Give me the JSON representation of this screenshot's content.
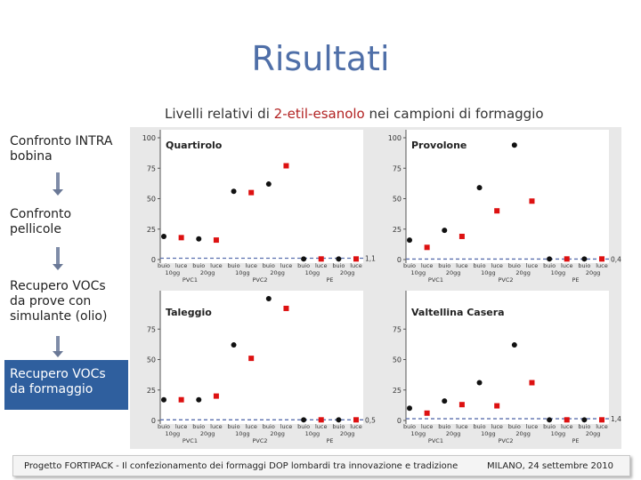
{
  "title": "Risultati",
  "subtitle": {
    "pre": "Livelli relativi di ",
    "compound": "2-etil-esanolo",
    "post": " nei campioni di formaggio"
  },
  "sidebar": {
    "items": [
      {
        "label": "Confronto INTRA bobina",
        "active": false
      },
      {
        "label": "Confronto pellicole",
        "active": false
      },
      {
        "label": "Recupero VOCs da prove con simulante (olio)",
        "active": false
      },
      {
        "label": "Recupero VOCs da formaggio",
        "active": true
      }
    ]
  },
  "footer": {
    "left": "Progetto FORTIPACK - Il confezionamento dei formaggi DOP lombardi tra innovazione e tradizione",
    "right": "MILANO, 24 settembre 2010"
  },
  "colors": {
    "series_circle": "#111111",
    "series_square": "#dd1111",
    "ref_line": "#5a6fae",
    "accent": "#2f5f9e"
  },
  "chart_data": [
    {
      "type": "scatter",
      "title": "Quartirolo",
      "categories": [
        "buio",
        "luce",
        "buio",
        "luce",
        "buio",
        "luce",
        "buio",
        "luce",
        "buio",
        "luce",
        "buio",
        "luce"
      ],
      "day_groups": [
        "10gg",
        "20gg",
        "10gg",
        "20gg",
        "10gg",
        "20gg"
      ],
      "film_groups": [
        "PVC1",
        "PVC2",
        "PE"
      ],
      "yticks": [
        0,
        25,
        50,
        75,
        100
      ],
      "ylim": [
        0,
        100
      ],
      "reference": {
        "value": 1.1,
        "label": "1,1"
      },
      "series": [
        {
          "marker": "circle",
          "values": [
            19,
            null,
            17,
            null,
            56,
            null,
            62,
            null,
            0.5,
            null,
            0.5,
            null
          ]
        },
        {
          "marker": "square",
          "values": [
            null,
            18,
            null,
            16,
            null,
            55,
            null,
            77,
            null,
            0.5,
            null,
            0.5
          ]
        }
      ]
    },
    {
      "type": "scatter",
      "title": "Provolone",
      "categories": [
        "buio",
        "luce",
        "buio",
        "luce",
        "buio",
        "luce",
        "buio",
        "luce",
        "buio",
        "luce",
        "buio",
        "luce"
      ],
      "day_groups": [
        "10gg",
        "20gg",
        "10gg",
        "20gg",
        "10gg",
        "20gg"
      ],
      "film_groups": [
        "PVC1",
        "PVC2",
        "PE"
      ],
      "yticks": [
        0,
        25,
        50,
        75,
        100
      ],
      "ylim": [
        0,
        100
      ],
      "reference": {
        "value": 0.4,
        "label": "0,4"
      },
      "series": [
        {
          "marker": "circle",
          "values": [
            16,
            null,
            24,
            null,
            59,
            null,
            94,
            null,
            0.5,
            null,
            0.5,
            null
          ]
        },
        {
          "marker": "square",
          "values": [
            null,
            10,
            null,
            19,
            null,
            40,
            null,
            48,
            null,
            0.5,
            null,
            0.5
          ]
        }
      ]
    },
    {
      "type": "scatter",
      "title": "Taleggio",
      "categories": [
        "buio",
        "luce",
        "buio",
        "luce",
        "buio",
        "luce",
        "buio",
        "luce",
        "buio",
        "luce",
        "buio",
        "luce"
      ],
      "day_groups": [
        "10gg",
        "20gg",
        "10gg",
        "20gg",
        "10gg",
        "20gg"
      ],
      "film_groups": [
        "PVC1",
        "PVC2",
        "PE"
      ],
      "yticks": [
        0,
        25,
        50,
        75
      ],
      "ylim": [
        0,
        100
      ],
      "reference": {
        "value": 0.5,
        "label": "0,5"
      },
      "series": [
        {
          "marker": "circle",
          "values": [
            17,
            null,
            17,
            null,
            62,
            null,
            100,
            null,
            0.5,
            null,
            0.5,
            null
          ]
        },
        {
          "marker": "square",
          "values": [
            null,
            17,
            null,
            20,
            null,
            51,
            null,
            92,
            null,
            0.5,
            null,
            0.5
          ]
        }
      ]
    },
    {
      "type": "scatter",
      "title": "Valtellina Casera",
      "categories": [
        "buio",
        "luce",
        "buio",
        "luce",
        "buio",
        "luce",
        "buio",
        "luce",
        "buio",
        "luce",
        "buio",
        "luce"
      ],
      "day_groups": [
        "10gg",
        "20gg",
        "10gg",
        "20gg",
        "10gg",
        "20gg"
      ],
      "film_groups": [
        "PVC1",
        "PVC2",
        "PE"
      ],
      "yticks": [
        0,
        25,
        50,
        75
      ],
      "ylim": [
        0,
        100
      ],
      "reference": {
        "value": 1.4,
        "label": "1,4"
      },
      "series": [
        {
          "marker": "circle",
          "values": [
            10,
            null,
            16,
            null,
            31,
            null,
            62,
            null,
            0.5,
            null,
            0.5,
            null
          ]
        },
        {
          "marker": "square",
          "values": [
            null,
            6,
            null,
            13,
            null,
            12,
            null,
            31,
            null,
            0.5,
            null,
            0.5
          ]
        }
      ]
    }
  ]
}
